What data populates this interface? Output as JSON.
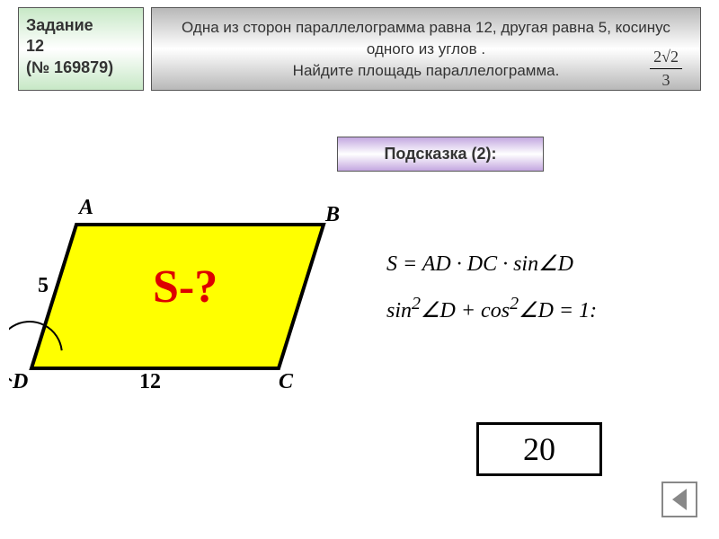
{
  "task": {
    "label_line1": "Задание",
    "label_line2": "12",
    "label_line3": "(№ 169879)"
  },
  "problem": {
    "text": "Одна из сторон параллелограмма равна 12, другая равна 5, косинус одного из углов            .\nНайдите площадь параллелограмма.",
    "cos_value_num": "2√2",
    "cos_value_den": "3"
  },
  "hint": {
    "label": "Подсказка (2):"
  },
  "figure": {
    "vertices": {
      "A": "A",
      "B": "B",
      "C": "C",
      "D": "D"
    },
    "side_ad": "5",
    "side_dc": "12",
    "question": "S-?",
    "shape_fill": "#ffff00",
    "shape_stroke": "#000000",
    "stroke_width": 4
  },
  "formulas": {
    "line1": "S = AD · DC · sin∠D",
    "line2_html": "sin<sup>2</sup>∠D + cos<sup>2</sup>∠D = 1:"
  },
  "answer": {
    "value": "20"
  },
  "nav": {
    "icon_name": "prev-arrow"
  },
  "colors": {
    "task_bg_grad": [
      "#c7e8c6",
      "#ffffff",
      "#c7e8c6"
    ],
    "problem_bg_grad": [
      "#b8b8b8",
      "#ffffff",
      "#b8b8b8"
    ],
    "hint_bg_grad": [
      "#c3a7e0",
      "#ffffff",
      "#c3a7e0"
    ],
    "red": "#d00"
  }
}
